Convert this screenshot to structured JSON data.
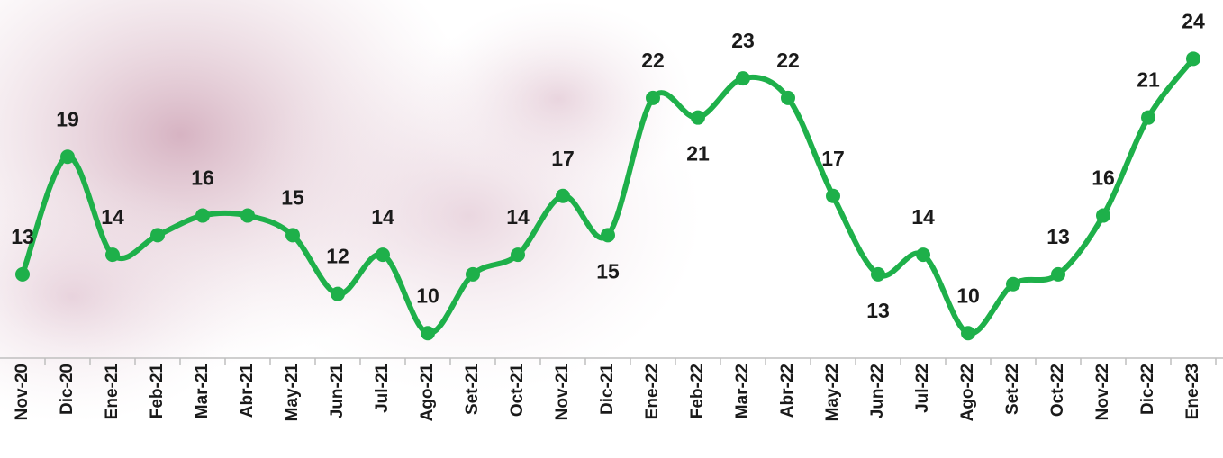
{
  "chart_data": {
    "type": "line",
    "categories": [
      "Nov-20",
      "Dic-20",
      "Ene-21",
      "Feb-21",
      "Mar-21",
      "Abr-21",
      "May-21",
      "Jun-21",
      "Jul-21",
      "Ago-21",
      "Set-21",
      "Oct-21",
      "Nov-21",
      "Dic-21",
      "Ene-22",
      "Feb-22",
      "Mar-22",
      "Abr-22",
      "May-22",
      "Jun-22",
      "Jul-22",
      "Ago-22",
      "Set-22",
      "Oct-22",
      "Nov-22",
      "Dic-22",
      "Ene-23"
    ],
    "series": [
      {
        "color": "#1eb04a",
        "values": [
          13,
          19,
          14,
          15,
          16,
          16,
          15,
          12,
          14,
          10,
          13,
          14,
          17,
          15,
          22,
          21,
          23,
          22,
          17,
          13,
          14,
          10,
          12.5,
          13,
          16,
          21,
          24
        ],
        "value_labels": [
          "13",
          "19",
          "14",
          null,
          "16",
          null,
          "15",
          "12",
          "14",
          "10",
          null,
          "14",
          "17",
          "15",
          "22",
          "21",
          "23",
          "22",
          "17",
          "13",
          "14",
          "10",
          null,
          "13",
          "16",
          "21",
          "24"
        ]
      }
    ],
    "ylim": [
      9,
      27
    ]
  }
}
